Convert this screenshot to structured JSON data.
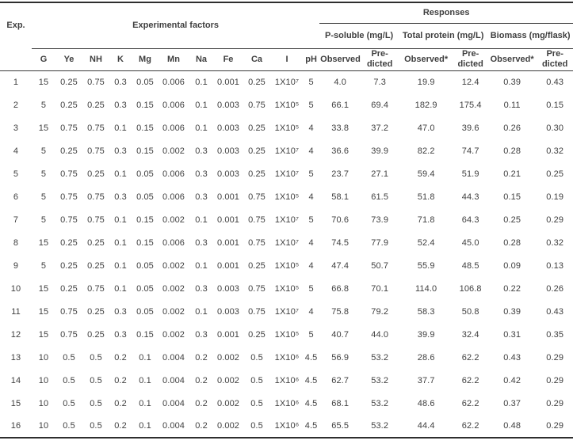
{
  "table": {
    "corner_header": "Exp.",
    "factors_group_label": "Experimental factors",
    "responses_group_label": "Responses",
    "response_groups": [
      "P-soluble (mg/L)",
      "Total protein (mg/L)",
      "Biomass (mg/flask)"
    ],
    "factor_columns": [
      "G",
      "Ye",
      "NH",
      "K",
      "Mg",
      "Mn",
      "Na",
      "Fe",
      "Ca",
      "I",
      "pH"
    ],
    "observed_label": "Observed*",
    "predicted_label_line1": "Pre-",
    "predicted_label_line2": "dicted",
    "column_keys": [
      "exp",
      "g",
      "ye",
      "nh",
      "k",
      "mg",
      "mn",
      "na",
      "fe",
      "ca",
      "i",
      "ph",
      "psoluble-observed",
      "psoluble-predicted",
      "protein-observed",
      "protein-predicted",
      "biomass-observed",
      "biomass-predicted"
    ],
    "rows": [
      [
        "1",
        "15",
        "0.25",
        "0.75",
        "0.3",
        "0.05",
        "0.006",
        "0.1",
        "0.001",
        "0.25",
        "1X10⁷",
        "5",
        "4.0",
        "7.3",
        "19.9",
        "12.4",
        "0.39",
        "0.43"
      ],
      [
        "2",
        "5",
        "0.25",
        "0.25",
        "0.3",
        "0.15",
        "0.006",
        "0.1",
        "0.003",
        "0.75",
        "1X10⁵",
        "5",
        "66.1",
        "69.4",
        "182.9",
        "175.4",
        "0.11",
        "0.15"
      ],
      [
        "3",
        "15",
        "0.75",
        "0.75",
        "0.1",
        "0.15",
        "0.006",
        "0.1",
        "0.003",
        "0.25",
        "1X10⁵",
        "4",
        "33.8",
        "37.2",
        "47.0",
        "39.6",
        "0.26",
        "0.30"
      ],
      [
        "4",
        "5",
        "0.25",
        "0.75",
        "0.3",
        "0.15",
        "0.002",
        "0.3",
        "0.003",
        "0.25",
        "1X10⁷",
        "4",
        "36.6",
        "39.9",
        "82.2",
        "74.7",
        "0.28",
        "0.32"
      ],
      [
        "5",
        "5",
        "0.75",
        "0.25",
        "0.1",
        "0.05",
        "0.006",
        "0.3",
        "0.003",
        "0.25",
        "1X10⁷",
        "5",
        "23.7",
        "27.1",
        "59.4",
        "51.9",
        "0.21",
        "0.25"
      ],
      [
        "6",
        "5",
        "0.75",
        "0.75",
        "0.3",
        "0.05",
        "0.006",
        "0.3",
        "0.001",
        "0.75",
        "1X10⁵",
        "4",
        "58.1",
        "61.5",
        "51.8",
        "44.3",
        "0.15",
        "0.19"
      ],
      [
        "7",
        "5",
        "0.75",
        "0.75",
        "0.1",
        "0.15",
        "0.002",
        "0.1",
        "0.001",
        "0.75",
        "1X10⁷",
        "5",
        "70.6",
        "73.9",
        "71.8",
        "64.3",
        "0.25",
        "0.29"
      ],
      [
        "8",
        "15",
        "0.25",
        "0.25",
        "0.1",
        "0.15",
        "0.006",
        "0.3",
        "0.001",
        "0.75",
        "1X10⁷",
        "4",
        "74.5",
        "77.9",
        "52.4",
        "45.0",
        "0.28",
        "0.32"
      ],
      [
        "9",
        "5",
        "0.25",
        "0.25",
        "0.1",
        "0.05",
        "0.002",
        "0.1",
        "0.001",
        "0.25",
        "1X10⁵",
        "4",
        "47.4",
        "50.7",
        "55.9",
        "48.5",
        "0.09",
        "0.13"
      ],
      [
        "10",
        "15",
        "0.25",
        "0.75",
        "0.1",
        "0.05",
        "0.002",
        "0.3",
        "0.003",
        "0.75",
        "1X10⁵",
        "5",
        "66.8",
        "70.1",
        "114.0",
        "106.8",
        "0.22",
        "0.26"
      ],
      [
        "11",
        "15",
        "0.75",
        "0.25",
        "0.3",
        "0.05",
        "0.002",
        "0.1",
        "0.003",
        "0.75",
        "1X10⁷",
        "4",
        "75.8",
        "79.2",
        "58.3",
        "50.8",
        "0.39",
        "0.43"
      ],
      [
        "12",
        "15",
        "0.75",
        "0.25",
        "0.3",
        "0.15",
        "0.002",
        "0.3",
        "0.001",
        "0.25",
        "1X10⁵",
        "5",
        "40.7",
        "44.0",
        "39.9",
        "32.4",
        "0.31",
        "0.35"
      ],
      [
        "13",
        "10",
        "0.5",
        "0.5",
        "0.2",
        "0.1",
        "0.004",
        "0.2",
        "0.002",
        "0.5",
        "1X10⁶",
        "4.5",
        "56.9",
        "53.2",
        "28.6",
        "62.2",
        "0.43",
        "0.29"
      ],
      [
        "14",
        "10",
        "0.5",
        "0.5",
        "0.2",
        "0.1",
        "0.004",
        "0.2",
        "0.002",
        "0.5",
        "1X10⁶",
        "4.5",
        "62.7",
        "53.2",
        "37.7",
        "62.2",
        "0.42",
        "0.29"
      ],
      [
        "15",
        "10",
        "0.5",
        "0.5",
        "0.2",
        "0.1",
        "0.004",
        "0.2",
        "0.002",
        "0.5",
        "1X10⁶",
        "4.5",
        "68.1",
        "53.2",
        "48.6",
        "62.2",
        "0.37",
        "0.29"
      ],
      [
        "16",
        "10",
        "0.5",
        "0.5",
        "0.2",
        "0.1",
        "0.004",
        "0.2",
        "0.002",
        "0.5",
        "1X10⁶",
        "4.5",
        "65.5",
        "53.2",
        "44.4",
        "62.2",
        "0.48",
        "0.29"
      ]
    ]
  }
}
